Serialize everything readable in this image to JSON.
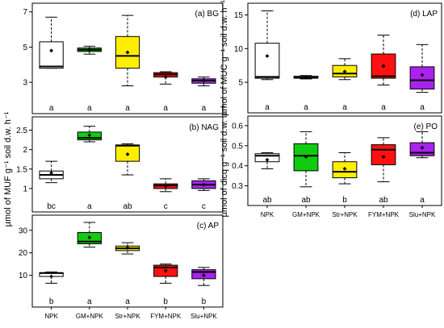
{
  "figure": {
    "left_ylabel": "µmol of MUF g⁻¹ soil d.w. h⁻¹",
    "right_ylabel_top": "µmol of MUC g⁻¹ soil d.w. h⁻¹",
    "right_ylabel_bottom": "µmol of dicq g⁻¹ soil d.w. h⁻¹"
  },
  "chart_data": [
    {
      "type": "box",
      "title": "(a) BG",
      "categories": [
        "NPK",
        "GM+NPK",
        "Str+NPK",
        "FYM+NPK",
        "Slu+NPK"
      ],
      "yticks": [
        3,
        5,
        7
      ],
      "ylim": [
        2.0,
        7.4
      ],
      "show_xticklabels": false,
      "colors": [
        "#ffffff",
        "#11cc11",
        "#ffee00",
        "#ff1111",
        "#aa22ee"
      ],
      "letters": [
        "a",
        "a",
        "a",
        "a",
        "a"
      ],
      "boxes": [
        {
          "wmin": 3.8,
          "q1": 3.8,
          "median": 3.9,
          "q3": 5.3,
          "wmax": 6.7,
          "mean": 4.8
        },
        {
          "wmin": 4.6,
          "q1": 4.75,
          "median": 4.85,
          "q3": 4.95,
          "wmax": 5.05,
          "mean": 4.85
        },
        {
          "wmin": 2.8,
          "q1": 3.8,
          "median": 4.5,
          "q3": 5.6,
          "wmax": 6.8,
          "mean": 4.7
        },
        {
          "wmin": 2.9,
          "q1": 3.3,
          "median": 3.45,
          "q3": 3.55,
          "wmax": 3.6,
          "mean": 3.3
        },
        {
          "wmin": 2.8,
          "q1": 2.95,
          "median": 3.1,
          "q3": 3.2,
          "wmax": 3.3,
          "mean": 3.1
        }
      ]
    },
    {
      "type": "box",
      "title": "(b) NAG",
      "categories": [
        "NPK",
        "GM+NPK",
        "Str+NPK",
        "FYM+NPK",
        "Slu+NPK"
      ],
      "yticks": [
        1.0,
        1.5,
        2.0,
        2.5
      ],
      "ylim": [
        0.75,
        2.8
      ],
      "show_xticklabels": false,
      "colors": [
        "#ffffff",
        "#11cc11",
        "#ffee00",
        "#ff1111",
        "#aa22ee"
      ],
      "letters": [
        "bc",
        "a",
        "ab",
        "c",
        "c"
      ],
      "boxes": [
        {
          "wmin": 1.15,
          "q1": 1.25,
          "median": 1.35,
          "q3": 1.45,
          "wmax": 1.7,
          "mean": 1.4
        },
        {
          "wmin": 2.2,
          "q1": 2.25,
          "median": 2.3,
          "q3": 2.45,
          "wmax": 2.6,
          "mean": 2.37
        },
        {
          "wmin": 1.35,
          "q1": 1.7,
          "median": 2.1,
          "q3": 2.12,
          "wmax": 2.15,
          "mean": 1.88
        },
        {
          "wmin": 0.92,
          "q1": 1.0,
          "median": 1.08,
          "q3": 1.12,
          "wmax": 1.25,
          "mean": 1.06
        },
        {
          "wmin": 0.95,
          "q1": 1.0,
          "median": 1.1,
          "q3": 1.2,
          "wmax": 1.25,
          "mean": 1.1
        }
      ]
    },
    {
      "type": "box",
      "title": "(c) AP",
      "categories": [
        "NPK",
        "GM+NPK",
        "Str+NPK",
        "FYM+NPK",
        "Slu+NPK"
      ],
      "yticks": [
        10,
        20,
        30
      ],
      "ylim": [
        2,
        36
      ],
      "show_xticklabels": true,
      "colors": [
        "#ffffff",
        "#11cc11",
        "#ffee00",
        "#ff1111",
        "#aa22ee"
      ],
      "letters": [
        "b",
        "a",
        "a",
        "b",
        "b"
      ],
      "boxes": [
        {
          "wmin": 6.5,
          "q1": 9.5,
          "median": 11.0,
          "q3": 11.2,
          "wmax": 11.5,
          "mean": 9.5
        },
        {
          "wmin": 22.5,
          "q1": 24.0,
          "median": 25.0,
          "q3": 29.0,
          "wmax": 33.5,
          "mean": 26.8
        },
        {
          "wmin": 19.5,
          "q1": 21.0,
          "median": 22.0,
          "q3": 23.0,
          "wmax": 24.5,
          "mean": 22.2
        },
        {
          "wmin": 6.5,
          "q1": 9.5,
          "median": 13.5,
          "q3": 14.5,
          "wmax": 15.0,
          "mean": 12.0
        },
        {
          "wmin": 5.5,
          "q1": 8.5,
          "median": 11.5,
          "q3": 12.5,
          "wmax": 13.5,
          "mean": 10.0
        }
      ]
    },
    {
      "type": "box",
      "title": "(d) LAP",
      "categories": [
        "NPK",
        "GM+NPK",
        "Str+NPK",
        "FYM+NPK",
        "Slu+NPK"
      ],
      "yticks": [
        5,
        10,
        15
      ],
      "ylim": [
        2.5,
        16.5
      ],
      "show_xticklabels": false,
      "colors": [
        "#ffffff",
        "#11cc11",
        "#ffee00",
        "#ff1111",
        "#aa22ee"
      ],
      "letters": [
        "a",
        "a",
        "a",
        "a",
        "a"
      ],
      "boxes": [
        {
          "wmin": 5.4,
          "q1": 5.6,
          "median": 5.8,
          "q3": 10.8,
          "wmax": 15.6,
          "mean": 8.9
        },
        {
          "wmin": 5.5,
          "q1": 5.6,
          "median": 5.7,
          "q3": 5.9,
          "wmax": 6.0,
          "mean": 5.7
        },
        {
          "wmin": 5.4,
          "q1": 5.8,
          "median": 6.3,
          "q3": 7.5,
          "wmax": 8.5,
          "mean": 6.6
        },
        {
          "wmin": 4.6,
          "q1": 5.6,
          "median": 5.9,
          "q3": 9.2,
          "wmax": 12.0,
          "mean": 7.4
        },
        {
          "wmin": 3.5,
          "q1": 4.0,
          "median": 5.3,
          "q3": 7.3,
          "wmax": 10.6,
          "mean": 6.1
        }
      ]
    },
    {
      "type": "box",
      "title": "(e) PO",
      "categories": [
        "NPK",
        "GM+NPK",
        "Str+NPK",
        "FYM+NPK",
        "Slu+NPK"
      ],
      "yticks": [
        0.3,
        0.4,
        0.5,
        0.6
      ],
      "ylim": [
        0.27,
        0.64
      ],
      "show_xticklabels": true,
      "colors": [
        "#ffffff",
        "#11cc11",
        "#ffee00",
        "#ff1111",
        "#aa22ee"
      ],
      "letters": [
        "ab",
        "ab",
        "b",
        "ab",
        "a"
      ],
      "boxes": [
        {
          "wmin": 0.385,
          "q1": 0.42,
          "median": 0.45,
          "q3": 0.46,
          "wmax": 0.465,
          "mean": 0.43
        },
        {
          "wmin": 0.295,
          "q1": 0.375,
          "median": 0.45,
          "q3": 0.51,
          "wmax": 0.57,
          "mean": 0.445
        },
        {
          "wmin": 0.31,
          "q1": 0.34,
          "median": 0.37,
          "q3": 0.42,
          "wmax": 0.465,
          "mean": 0.385
        },
        {
          "wmin": 0.32,
          "q1": 0.405,
          "median": 0.48,
          "q3": 0.505,
          "wmax": 0.54,
          "mean": 0.445
        },
        {
          "wmin": 0.44,
          "q1": 0.45,
          "median": 0.465,
          "q3": 0.515,
          "wmax": 0.57,
          "mean": 0.49
        }
      ]
    }
  ]
}
